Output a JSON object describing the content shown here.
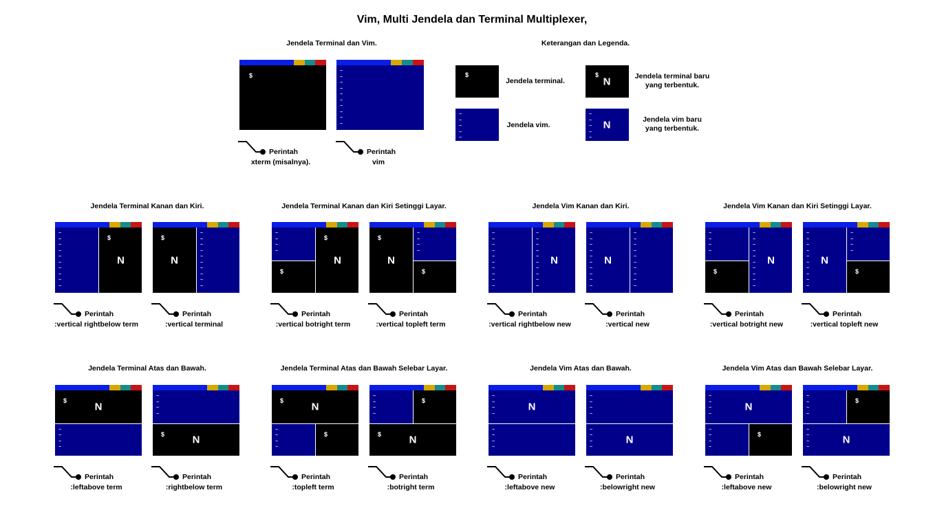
{
  "title": "Vim, Multi Jendela dan Terminal Multiplexer,",
  "colors": {
    "bar_blue": "#0a1ee6",
    "bar_yellow": "#d8a800",
    "bar_teal": "#168c8c",
    "bar_red": "#c81414",
    "terminal_bg": "#000000",
    "vim_bg": "#00008b",
    "divider": "#ffffff"
  },
  "symbols": {
    "prompt": "$",
    "new": "N",
    "tilde": "~"
  },
  "top": {
    "terminal_vim": {
      "title": "Jendela Terminal dan Vim.",
      "captions": [
        {
          "line1": "Perintah",
          "line2": "xterm (misalnya)."
        },
        {
          "line1": "Perintah",
          "line2": "vim"
        }
      ]
    },
    "legend": {
      "title": "Keterangan dan Legenda.",
      "items": [
        {
          "text1": "Jendela terminal.",
          "text2": ""
        },
        {
          "text1": "Jendela terminal baru",
          "text2": "yang terbentuk."
        },
        {
          "text1": "Jendela vim.",
          "text2": ""
        },
        {
          "text1": "Jendela vim baru",
          "text2": "yang terbentuk."
        }
      ]
    }
  },
  "sections": [
    {
      "title": "Jendela Terminal Kanan dan Kiri.",
      "captions": [
        {
          "line1": "Perintah",
          "line2": ":vertical rightbelow term"
        },
        {
          "line1": "Perintah",
          "line2": ":vertical terminal"
        }
      ]
    },
    {
      "title": "Jendela Terminal Kanan dan Kiri Setinggi Layar.",
      "captions": [
        {
          "line1": "Perintah",
          "line2": ":vertical botright term"
        },
        {
          "line1": "Perintah",
          "line2": ":vertical topleft term"
        }
      ]
    },
    {
      "title": "Jendela Vim Kanan dan Kiri.",
      "captions": [
        {
          "line1": "Perintah",
          "line2": ":vertical rightbelow new"
        },
        {
          "line1": "Perintah",
          "line2": ":vertical new"
        }
      ]
    },
    {
      "title": "Jendela Vim Kanan dan Kiri Setinggi Layar.",
      "captions": [
        {
          "line1": "Perintah",
          "line2": ":vertical botright new"
        },
        {
          "line1": "Perintah",
          "line2": ":vertical topleft new"
        }
      ]
    },
    {
      "title": "Jendela Terminal Atas dan Bawah.",
      "captions": [
        {
          "line1": "Perintah",
          "line2": ":leftabove term"
        },
        {
          "line1": "Perintah",
          "line2": ":rightbelow term"
        }
      ]
    },
    {
      "title": "Jendela Terminal Atas dan Bawah Selebar Layar.",
      "captions": [
        {
          "line1": "Perintah",
          "line2": ":topleft term"
        },
        {
          "line1": "Perintah",
          "line2": ":botright term"
        }
      ]
    },
    {
      "title": "Jendela Vim Atas dan Bawah.",
      "captions": [
        {
          "line1": "Perintah",
          "line2": ":leftabove new"
        },
        {
          "line1": "Perintah",
          "line2": ":belowright new"
        }
      ]
    },
    {
      "title": "Jendela Vim Atas dan Bawah Selebar Layar.",
      "captions": [
        {
          "line1": "Perintah",
          "line2": ":leftabove new"
        },
        {
          "line1": "Perintah",
          "line2": ":belowright new"
        }
      ]
    }
  ]
}
